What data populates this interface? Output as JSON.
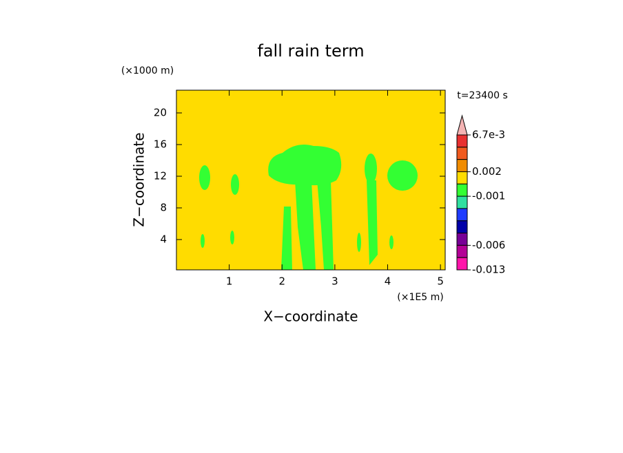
{
  "chart_data": {
    "type": "contour",
    "title": "fall rain term",
    "x_label": "X−coordinate",
    "y_label": "Z−coordinate",
    "x_unit": "(×1E5 m)",
    "y_unit": "(×1000 m)",
    "time_label": "t=23400 s",
    "xlim": [
      0,
      5.09
    ],
    "xticks": [
      1,
      2,
      3,
      4,
      5
    ],
    "ylim": [
      0.17,
      22.87
    ],
    "yticks": [
      4,
      8,
      12,
      16,
      20
    ],
    "background_color": "#ffdc00",
    "field_color": "#33ff33",
    "colorbar": {
      "colors": [
        "#f4b4b4",
        "#e83030",
        "#f05a1e",
        "#f08c00",
        "#ffdc00",
        "#33ff33",
        "#30e0a0",
        "#1e3cff",
        "#0000a8",
        "#780096",
        "#b40096",
        "#ff14aa"
      ],
      "labels": [
        {
          "value": 0.0067,
          "label": "6.7e-3"
        },
        0.002,
        -0.001,
        -0.006,
        -0.013
      ]
    }
  }
}
